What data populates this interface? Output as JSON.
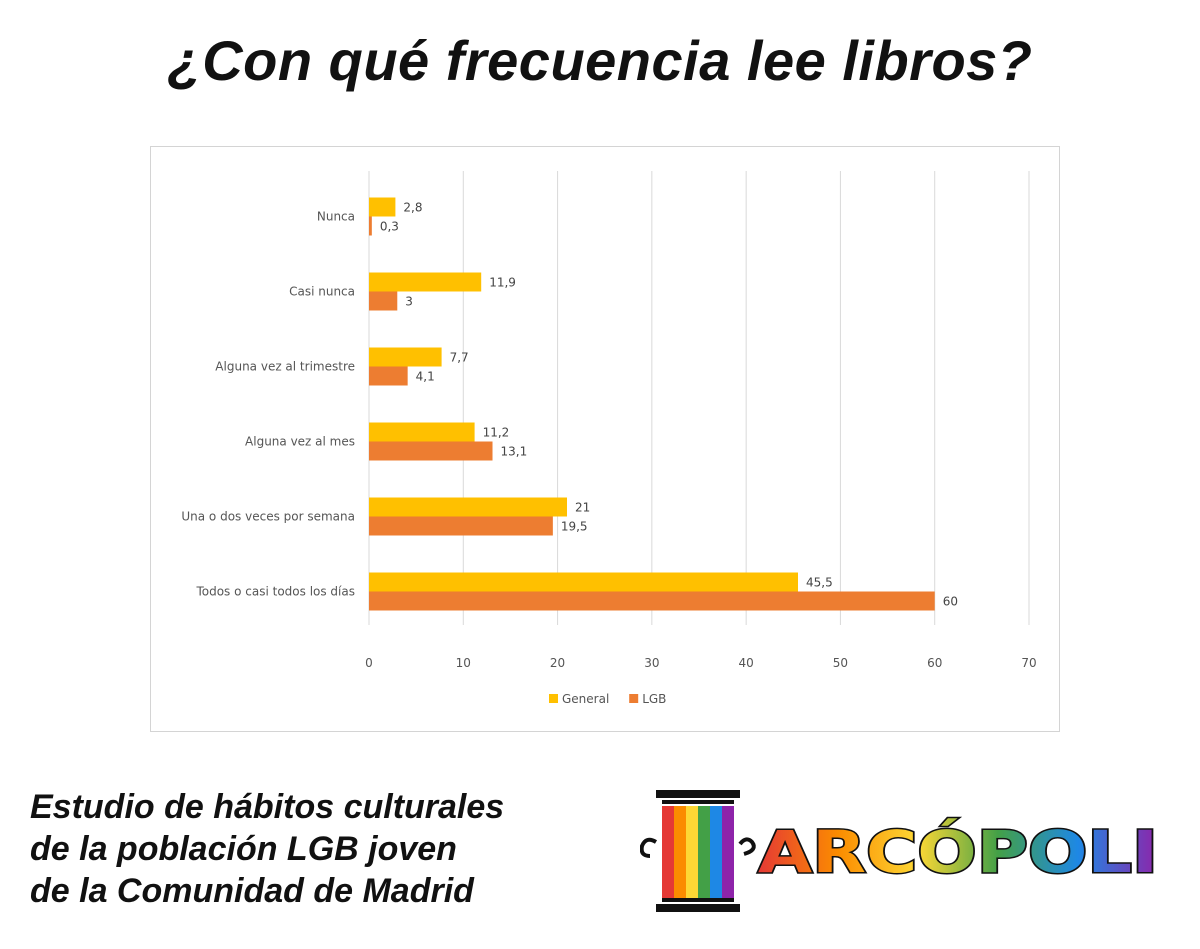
{
  "title": "¿Con qué frecuencia lee libros?",
  "caption": {
    "line1": "Estudio de hábitos culturales",
    "line2": "de la población LGB joven",
    "line3": "de la Comunidad de Madrid"
  },
  "logo": {
    "text": "ARCÓPOLI"
  },
  "chart_data": {
    "type": "bar",
    "orientation": "horizontal",
    "categories": [
      "Nunca",
      "Casi nunca",
      "Alguna vez al trimestre",
      "Alguna vez al mes",
      "Una o dos veces por semana",
      "Todos o casi todos los días"
    ],
    "series": [
      {
        "name": "General",
        "color": "#ffc000",
        "values": [
          2.8,
          11.9,
          7.7,
          11.2,
          21,
          45.5
        ],
        "labels": [
          "2,8",
          "11,9",
          "7,7",
          "11,2",
          "21",
          "45,5"
        ]
      },
      {
        "name": "LGB",
        "color": "#ed7d31",
        "values": [
          0.3,
          3,
          4.1,
          13.1,
          19.5,
          60
        ],
        "labels": [
          "0,3",
          "3",
          "4,1",
          "13,1",
          "19,5",
          "60"
        ]
      }
    ],
    "xlim": [
      0,
      70
    ],
    "xticks": [
      0,
      10,
      20,
      30,
      40,
      50,
      60,
      70
    ],
    "grid": true,
    "legend": "bottom",
    "title": "",
    "xlabel": "",
    "ylabel": ""
  }
}
